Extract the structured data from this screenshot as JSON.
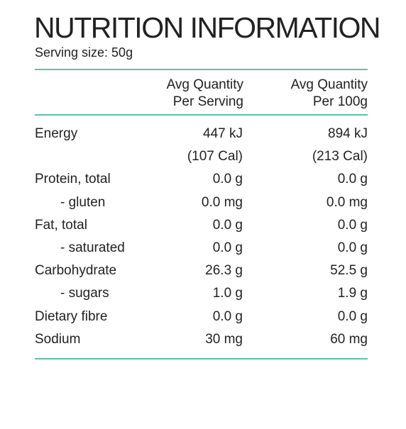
{
  "title": "NUTRITION INFORMATION",
  "serving_size": "Serving size: 50g",
  "columns": {
    "per_serving": [
      "Avg Quantity",
      "Per Serving"
    ],
    "per_100g": [
      "Avg Quantity",
      "Per 100g"
    ]
  },
  "colors": {
    "rule": "#5cc3a3",
    "text": "#222222"
  },
  "rows": [
    {
      "label": "Energy",
      "per_serving": "447 kJ",
      "per_100g": "894 kJ",
      "sub": false
    },
    {
      "label": "",
      "per_serving": "(107 Cal)",
      "per_100g": "(213 Cal)",
      "sub": false
    },
    {
      "label": "Protein, total",
      "per_serving": "0.0 g",
      "per_100g": "0.0 g",
      "sub": false
    },
    {
      "label": "- gluten",
      "per_serving": "0.0 mg",
      "per_100g": "0.0 mg",
      "sub": true
    },
    {
      "label": "Fat, total",
      "per_serving": "0.0 g",
      "per_100g": "0.0 g",
      "sub": false
    },
    {
      "label": "- saturated",
      "per_serving": "0.0 g",
      "per_100g": "0.0 g",
      "sub": true
    },
    {
      "label": "Carbohydrate",
      "per_serving": "26.3 g",
      "per_100g": "52.5 g",
      "sub": false
    },
    {
      "label": "- sugars",
      "per_serving": "1.0 g",
      "per_100g": "1.9 g",
      "sub": true
    },
    {
      "label": "Dietary fibre",
      "per_serving": "0.0 g",
      "per_100g": "0.0 g",
      "sub": false
    },
    {
      "label": "Sodium",
      "per_serving": "30 mg",
      "per_100g": "60 mg",
      "sub": false
    }
  ]
}
